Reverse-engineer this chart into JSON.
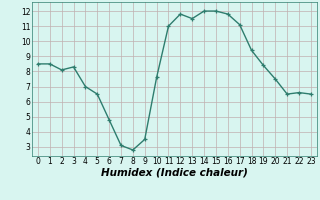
{
  "x": [
    0,
    1,
    2,
    3,
    4,
    5,
    6,
    7,
    8,
    9,
    10,
    11,
    12,
    13,
    14,
    15,
    16,
    17,
    18,
    19,
    20,
    21,
    22,
    23
  ],
  "y": [
    8.5,
    8.5,
    8.1,
    8.3,
    7.0,
    6.5,
    4.8,
    3.1,
    2.8,
    3.5,
    7.6,
    11.0,
    11.8,
    11.5,
    12.0,
    12.0,
    11.8,
    11.1,
    9.4,
    8.4,
    7.5,
    6.5,
    6.6,
    6.5
  ],
  "line_color": "#2e7d6e",
  "marker": "+",
  "marker_size": 3,
  "line_width": 1.0,
  "bg_color": "#d8f5f0",
  "grid_color": "#c0b0b0",
  "xlabel": "Humidex (Indice chaleur)",
  "xlabel_style": "italic",
  "xlim": [
    -0.5,
    23.5
  ],
  "ylim": [
    2.4,
    12.6
  ],
  "yticks": [
    3,
    4,
    5,
    6,
    7,
    8,
    9,
    10,
    11,
    12
  ],
  "xticks": [
    0,
    1,
    2,
    3,
    4,
    5,
    6,
    7,
    8,
    9,
    10,
    11,
    12,
    13,
    14,
    15,
    16,
    17,
    18,
    19,
    20,
    21,
    22,
    23
  ],
  "tick_fontsize": 5.5,
  "xlabel_fontsize": 7.5,
  "xlabel_weight": "bold"
}
